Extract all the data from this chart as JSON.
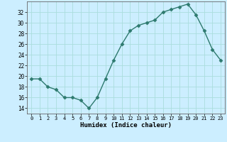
{
  "x": [
    0,
    1,
    2,
    3,
    4,
    5,
    6,
    7,
    8,
    9,
    10,
    11,
    12,
    13,
    14,
    15,
    16,
    17,
    18,
    19,
    20,
    21,
    22,
    23
  ],
  "y": [
    19.5,
    19.5,
    18,
    17.5,
    16,
    16,
    15.5,
    14,
    16,
    19.5,
    23,
    26,
    28.5,
    29.5,
    30,
    30.5,
    32,
    32.5,
    33,
    33.5,
    31.5,
    28.5,
    25,
    23
  ],
  "line_color": "#2d7a6e",
  "marker": "D",
  "marker_size": 2.5,
  "bg_color": "#cceeff",
  "grid_color": "#aadddd",
  "xlabel": "Humidex (Indice chaleur)",
  "ylim": [
    13,
    34
  ],
  "xlim": [
    -0.5,
    23.5
  ],
  "yticks": [
    14,
    16,
    18,
    20,
    22,
    24,
    26,
    28,
    30,
    32
  ],
  "xticks": [
    0,
    1,
    2,
    3,
    4,
    5,
    6,
    7,
    8,
    9,
    10,
    11,
    12,
    13,
    14,
    15,
    16,
    17,
    18,
    19,
    20,
    21,
    22,
    23
  ]
}
